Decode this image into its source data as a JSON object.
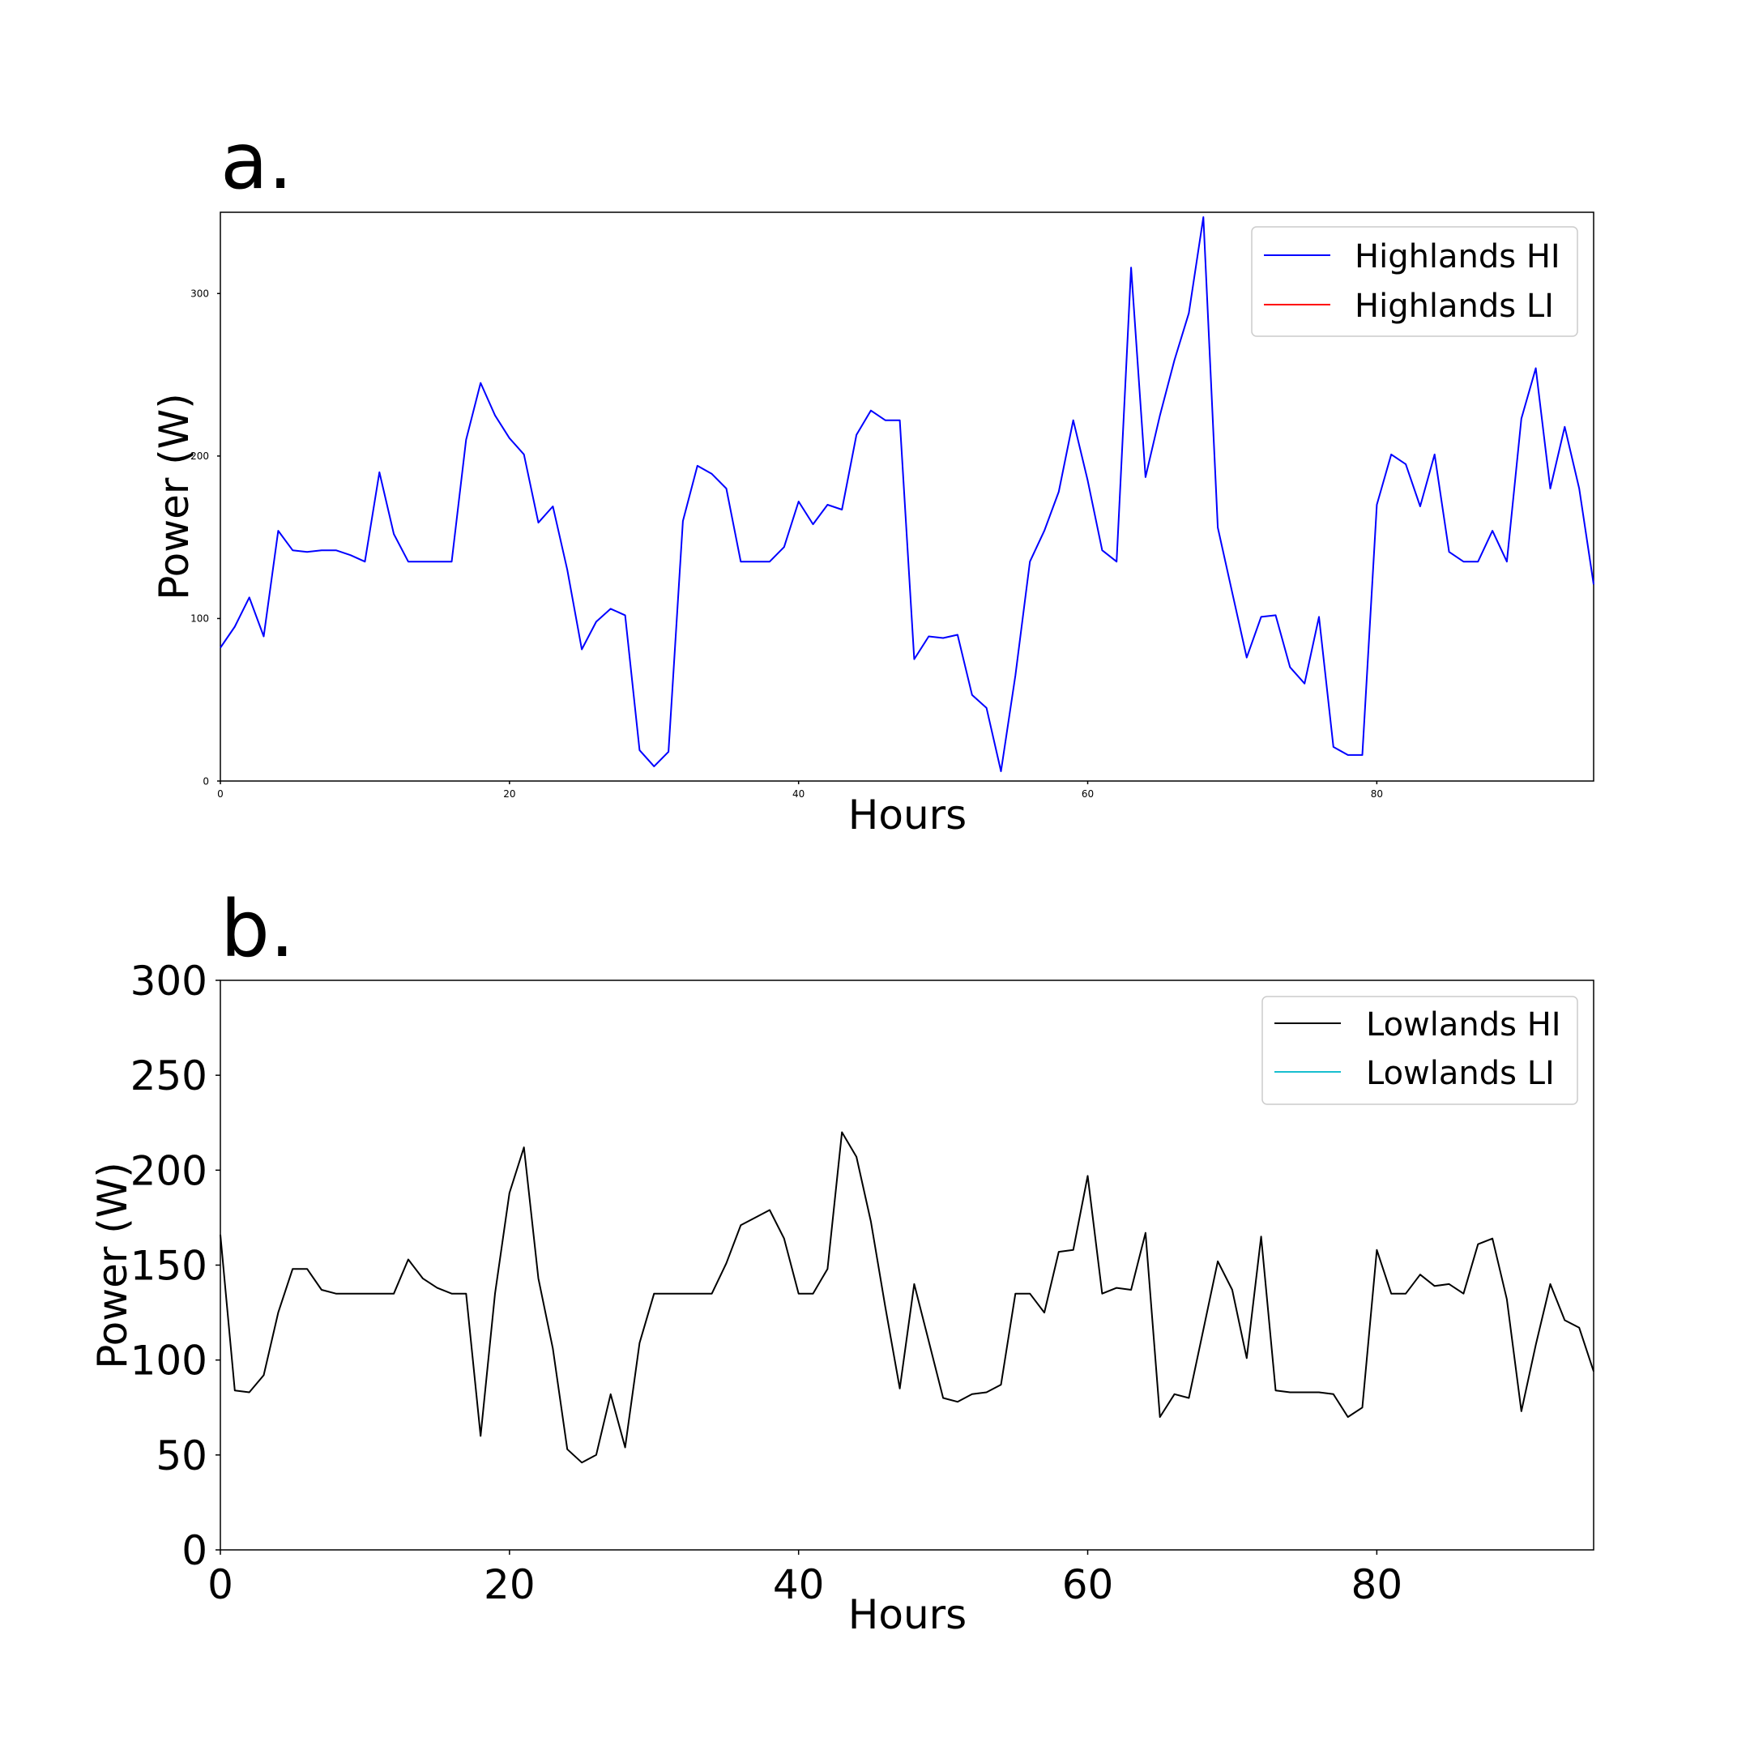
{
  "chart_data": [
    {
      "type": "line",
      "panel_label": "a.",
      "title": "",
      "xlabel": "Hours",
      "ylabel": "Power (W)",
      "xlim": [
        0,
        95
      ],
      "ylim": [
        0,
        350
      ],
      "x_ticks": [
        0,
        20,
        40,
        60,
        80
      ],
      "x_tick_labels": [
        "0",
        "20",
        "40",
        "60",
        "80"
      ],
      "y_ticks": [
        0,
        100,
        200,
        300
      ],
      "y_tick_labels": [
        "0",
        "100",
        "200",
        "300"
      ],
      "grid": false,
      "legend": "top-right",
      "series": [
        {
          "name": "Highlands HI",
          "color": "#0000ff",
          "x": [
            0,
            1,
            2,
            3,
            4,
            5,
            6,
            7,
            8,
            9,
            10,
            11,
            12,
            13,
            14,
            15,
            16,
            17,
            18,
            19,
            20,
            21,
            22,
            23,
            24,
            25,
            26,
            27,
            28,
            29,
            30,
            31,
            32,
            33,
            34,
            35,
            36,
            37,
            38,
            39,
            40,
            41,
            42,
            43,
            44,
            45,
            46,
            47,
            48,
            49,
            50,
            51,
            52,
            53,
            54,
            55,
            56,
            57,
            58,
            59,
            60,
            61,
            62,
            63,
            64,
            65,
            66,
            67,
            68,
            69,
            70,
            71,
            72,
            73,
            74,
            75,
            76,
            77,
            78,
            79,
            80,
            81,
            82,
            83,
            84,
            85,
            86,
            87,
            88,
            89,
            90,
            91,
            92,
            93,
            94,
            95
          ],
          "values": [
            82,
            95,
            113,
            89,
            154,
            142,
            141,
            142,
            142,
            139,
            135,
            190,
            152,
            135,
            135,
            135,
            135,
            210,
            245,
            225,
            211,
            201,
            159,
            169,
            130,
            81,
            98,
            106,
            102,
            19,
            9,
            18,
            160,
            194,
            189,
            180,
            135,
            135,
            135,
            144,
            172,
            158,
            170,
            167,
            213,
            228,
            222,
            222,
            75,
            89,
            88,
            90,
            53,
            45,
            6,
            65,
            135,
            154,
            178,
            222,
            185,
            142,
            135,
            316,
            187,
            225,
            259,
            288,
            347,
            156,
            116,
            76,
            101,
            102,
            70,
            60,
            101,
            21,
            16,
            16,
            170,
            201,
            195,
            169,
            201,
            141,
            135,
            135,
            154,
            135,
            223,
            254,
            180,
            218,
            180,
            121
          ]
        },
        {
          "name": "Highlands LI",
          "color": "#ff0000",
          "x": [],
          "values": []
        }
      ]
    },
    {
      "type": "line",
      "panel_label": "b.",
      "title": "",
      "xlabel": "Hours",
      "ylabel": "Power (W)",
      "xlim": [
        0,
        95
      ],
      "ylim": [
        0,
        300
      ],
      "x_ticks": [
        0,
        20,
        40,
        60,
        80
      ],
      "x_tick_labels": [
        "0",
        "20",
        "40",
        "60",
        "80"
      ],
      "y_ticks": [
        0,
        50,
        100,
        150,
        200,
        250,
        300
      ],
      "y_tick_labels": [
        "0",
        "50",
        "100",
        "150",
        "200",
        "250",
        "300"
      ],
      "grid": false,
      "legend": "top-right",
      "series": [
        {
          "name": "Lowlands HI",
          "color": "#000000",
          "x": [
            0,
            1,
            2,
            3,
            4,
            5,
            6,
            7,
            8,
            9,
            10,
            11,
            12,
            13,
            14,
            15,
            16,
            17,
            18,
            19,
            20,
            21,
            22,
            23,
            24,
            25,
            26,
            27,
            28,
            29,
            30,
            31,
            32,
            33,
            34,
            35,
            36,
            37,
            38,
            39,
            40,
            41,
            42,
            43,
            44,
            45,
            46,
            47,
            48,
            49,
            50,
            51,
            52,
            53,
            54,
            55,
            56,
            57,
            58,
            59,
            60,
            61,
            62,
            63,
            64,
            65,
            66,
            67,
            68,
            69,
            70,
            71,
            72,
            73,
            74,
            75,
            76,
            77,
            78,
            79,
            80,
            81,
            82,
            83,
            84,
            85,
            86,
            87,
            88,
            89,
            90,
            91,
            92,
            93,
            94,
            95
          ],
          "values": [
            166,
            84,
            83,
            92,
            125,
            148,
            148,
            137,
            135,
            135,
            135,
            135,
            135,
            153,
            143,
            138,
            135,
            135,
            60,
            135,
            188,
            212,
            143,
            106,
            53,
            46,
            50,
            82,
            54,
            109,
            135,
            135,
            135,
            135,
            135,
            151,
            171,
            175,
            179,
            164,
            135,
            135,
            148,
            220,
            207,
            173,
            128,
            85,
            140,
            110,
            80,
            78,
            82,
            83,
            87,
            135,
            135,
            125,
            157,
            158,
            197,
            135,
            138,
            137,
            167,
            70,
            82,
            80,
            116,
            152,
            137,
            101,
            165,
            84,
            83,
            83,
            83,
            82,
            70,
            75,
            158,
            135,
            135,
            145,
            139,
            140,
            135,
            161,
            164,
            132,
            73,
            108,
            140,
            121,
            117,
            94
          ]
        },
        {
          "name": "Lowlands LI",
          "color": "#17becf",
          "x": [],
          "values": []
        }
      ]
    }
  ]
}
